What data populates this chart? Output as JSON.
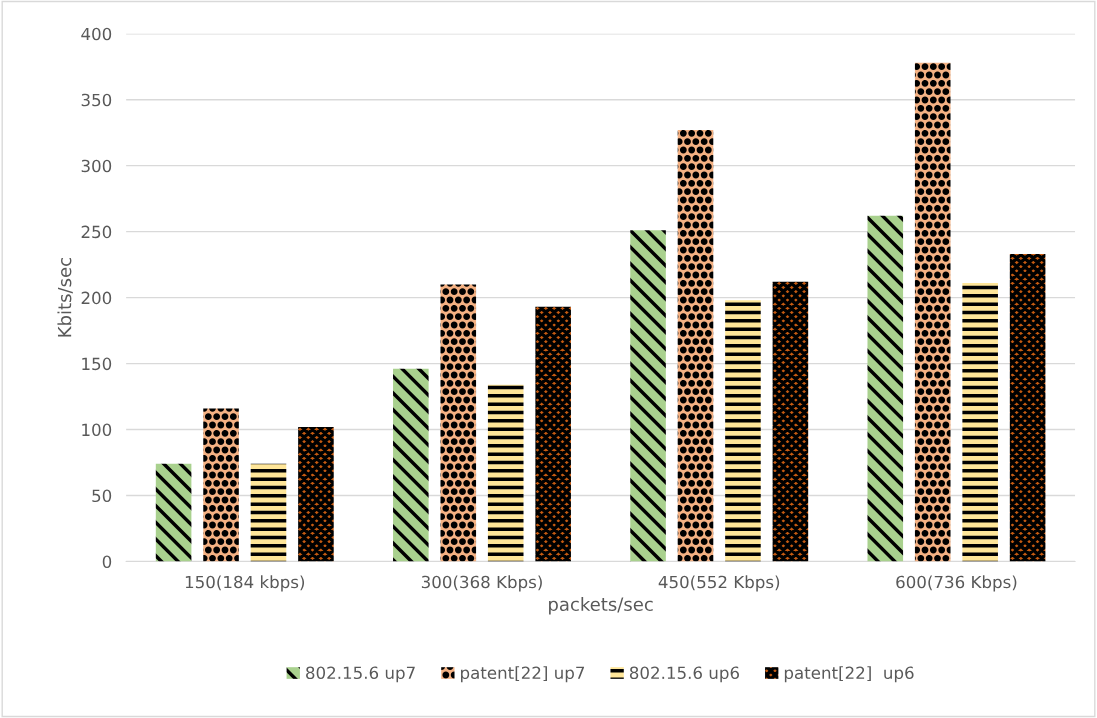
{
  "chart_data": {
    "type": "bar",
    "xlabel": "packets/sec",
    "ylabel": "Kbits/sec",
    "categories": [
      "150(184 kbps)",
      "300(368 Kbps)",
      "450(552 Kbps)",
      "600(736 Kbps)"
    ],
    "series": [
      {
        "name": "802.15.6 up7",
        "color": "#a9d18e",
        "values": [
          74,
          146,
          251,
          262
        ]
      },
      {
        "name": "patent[22] up7",
        "color": "#f4b183",
        "values": [
          116,
          210,
          327,
          378
        ]
      },
      {
        "name": "802.15.6 up6",
        "color": "#ffe699",
        "values": [
          74,
          134,
          198,
          211
        ]
      },
      {
        "name": "patent[22]  up6",
        "color": "#c55a11",
        "values": [
          102,
          193,
          212,
          233
        ]
      }
    ],
    "ylim": [
      0,
      400
    ],
    "yticks": [
      0,
      50,
      100,
      150,
      200,
      250,
      300,
      350,
      400
    ],
    "grid": "y",
    "legend": "bottom"
  }
}
